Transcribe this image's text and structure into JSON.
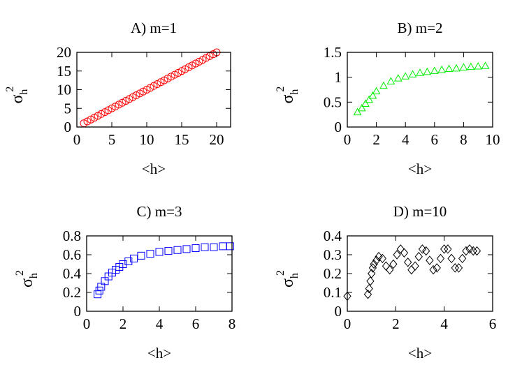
{
  "chart_data": [
    {
      "type": "scatter",
      "title": "A) m=1",
      "xlabel": "<h>",
      "ylabel": {
        "symbol": "σ",
        "sub": "h",
        "sup": "2"
      },
      "marker": "circle",
      "color": "#ff0000",
      "x": [
        1,
        1.5,
        2,
        2.5,
        3,
        3.5,
        4,
        4.5,
        5,
        5.5,
        6,
        6.5,
        7,
        7.5,
        8,
        8.5,
        9,
        9.5,
        10,
        10.5,
        11,
        11.5,
        12,
        12.5,
        13,
        13.5,
        14,
        14.5,
        15,
        15.5,
        16,
        16.5,
        17,
        17.5,
        18,
        18.5,
        19,
        19.5,
        20
      ],
      "values": [
        1,
        1.5,
        2,
        2.5,
        3,
        3.5,
        4,
        4.5,
        5,
        5.5,
        6,
        6.5,
        7,
        7.5,
        8,
        8.5,
        9,
        9.5,
        10,
        10.5,
        11,
        11.5,
        12,
        12.5,
        13,
        13.5,
        14,
        14.5,
        15,
        15.5,
        16,
        16.5,
        17,
        17.5,
        18,
        18.5,
        19,
        19.5,
        20
      ],
      "xlim": [
        0,
        22
      ],
      "xticks": [
        0,
        5,
        10,
        15,
        20
      ],
      "ylim": [
        0,
        20
      ],
      "yticks": [
        0,
        5,
        10,
        15,
        20
      ]
    },
    {
      "type": "scatter",
      "title": "B) m=2",
      "xlabel": "<h>",
      "ylabel": {
        "symbol": "σ",
        "sub": "h",
        "sup": "2"
      },
      "marker": "triangle",
      "color": "#00ee00",
      "x": [
        0.7,
        1,
        1.25,
        1.5,
        1.75,
        2,
        2.5,
        3,
        3.5,
        4,
        4.5,
        5,
        5.5,
        6,
        6.5,
        7,
        7.5,
        8,
        8.5,
        9,
        9.5
      ],
      "values": [
        0.3,
        0.38,
        0.47,
        0.55,
        0.63,
        0.72,
        0.83,
        0.92,
        0.98,
        1.02,
        1.06,
        1.09,
        1.11,
        1.13,
        1.15,
        1.17,
        1.18,
        1.2,
        1.21,
        1.22,
        1.23
      ],
      "xlim": [
        0,
        10
      ],
      "xticks": [
        0,
        2,
        4,
        6,
        8,
        10
      ],
      "ylim": [
        0,
        1.5
      ],
      "yticks": [
        0,
        0.5,
        1,
        1.5
      ]
    },
    {
      "type": "scatter",
      "title": "C) m=3",
      "xlabel": "<h>",
      "ylabel": {
        "symbol": "σ",
        "sub": "h",
        "sup": "2"
      },
      "marker": "square",
      "color": "#0000ff",
      "x": [
        0.6,
        0.7,
        0.8,
        1,
        1.2,
        1.4,
        1.6,
        1.8,
        2,
        2.3,
        2.6,
        3,
        3.5,
        4,
        4.5,
        5,
        5.5,
        6,
        6.5,
        7,
        7.5,
        7.9
      ],
      "values": [
        0.18,
        0.22,
        0.26,
        0.32,
        0.37,
        0.41,
        0.44,
        0.47,
        0.5,
        0.53,
        0.56,
        0.59,
        0.61,
        0.63,
        0.64,
        0.65,
        0.66,
        0.67,
        0.68,
        0.68,
        0.69,
        0.69
      ],
      "xlim": [
        0,
        8
      ],
      "xticks": [
        0,
        2,
        4,
        6,
        8
      ],
      "ylim": [
        0,
        0.8
      ],
      "yticks": [
        0,
        0.2,
        0.4,
        0.6,
        0.8
      ]
    },
    {
      "type": "scatter",
      "title": "D) m=10",
      "xlabel": "<h>",
      "ylabel": {
        "symbol": "σ",
        "sub": "h",
        "sup": "2"
      },
      "marker": "diamond",
      "color": "#000000",
      "x": [
        0,
        0.85,
        0.9,
        0.95,
        1,
        1.05,
        1.1,
        1.2,
        1.3,
        1.45,
        1.6,
        1.75,
        1.9,
        2.05,
        2.2,
        2.35,
        2.5,
        2.65,
        2.8,
        2.95,
        3.1,
        3.25,
        3.4,
        3.55,
        3.7,
        3.85,
        4,
        4.15,
        4.3,
        4.45,
        4.6,
        4.75,
        4.9,
        5.05,
        5.2,
        5.35
      ],
      "values": [
        0.08,
        0.09,
        0.12,
        0.16,
        0.2,
        0.23,
        0.25,
        0.27,
        0.29,
        0.28,
        0.24,
        0.22,
        0.25,
        0.3,
        0.33,
        0.31,
        0.26,
        0.22,
        0.24,
        0.29,
        0.33,
        0.32,
        0.27,
        0.22,
        0.23,
        0.28,
        0.33,
        0.33,
        0.28,
        0.23,
        0.23,
        0.28,
        0.32,
        0.33,
        0.32,
        0.32
      ],
      "xlim": [
        0,
        6
      ],
      "xticks": [
        0,
        2,
        4,
        6
      ],
      "ylim": [
        0,
        0.4
      ],
      "yticks": [
        0,
        0.1,
        0.2,
        0.3,
        0.4
      ]
    }
  ]
}
